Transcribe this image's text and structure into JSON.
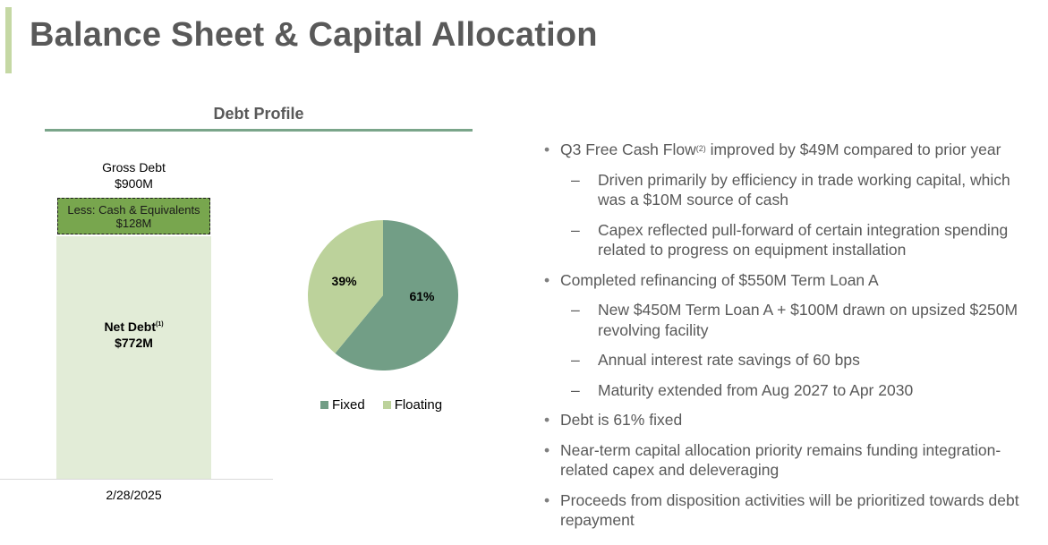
{
  "slide": {
    "title": "Balance Sheet & Capital Allocation"
  },
  "debt_profile": {
    "heading": "Debt Profile",
    "gross_label": "Gross Debt",
    "gross_value": "$900M",
    "less_label": "Less: Cash & Equivalents",
    "less_value": "$128M",
    "net_label": "Net Debt",
    "net_sup": "(1)",
    "net_value": "$772M",
    "date": "2/28/2025"
  },
  "chart_data": {
    "type": "pie",
    "labels": [
      "Fixed",
      "Floating"
    ],
    "values": [
      61,
      39
    ],
    "value_labels": [
      "61%",
      "39%"
    ],
    "colors": [
      "#729e86",
      "#bcd29b"
    ],
    "legend_position": "bottom"
  },
  "bullets": [
    {
      "level": 1,
      "text": "Q3 Free Cash Flow",
      "sup": "(2)",
      "text_after": " improved by $49M compared to prior year"
    },
    {
      "level": 2,
      "text": "Driven primarily by efficiency in trade working capital, which was a $10M source of cash"
    },
    {
      "level": 2,
      "text": "Capex reflected pull-forward of certain integration spending related to progress on equipment installation"
    },
    {
      "level": 1,
      "text": "Completed refinancing of $550M Term Loan A"
    },
    {
      "level": 2,
      "text": "New $450M Term Loan A + $100M drawn on upsized $250M revolving facility"
    },
    {
      "level": 2,
      "text": "Annual interest rate savings of 60 bps"
    },
    {
      "level": 2,
      "text": "Maturity extended from Aug 2027 to Apr 2030"
    },
    {
      "level": 1,
      "text": "Debt is 61% fixed"
    },
    {
      "level": 1,
      "text": "Near-term capital allocation priority remains funding integration-related capex and deleveraging"
    },
    {
      "level": 1,
      "text": "Proceeds from disposition activities will be prioritized towards debt repayment"
    }
  ]
}
